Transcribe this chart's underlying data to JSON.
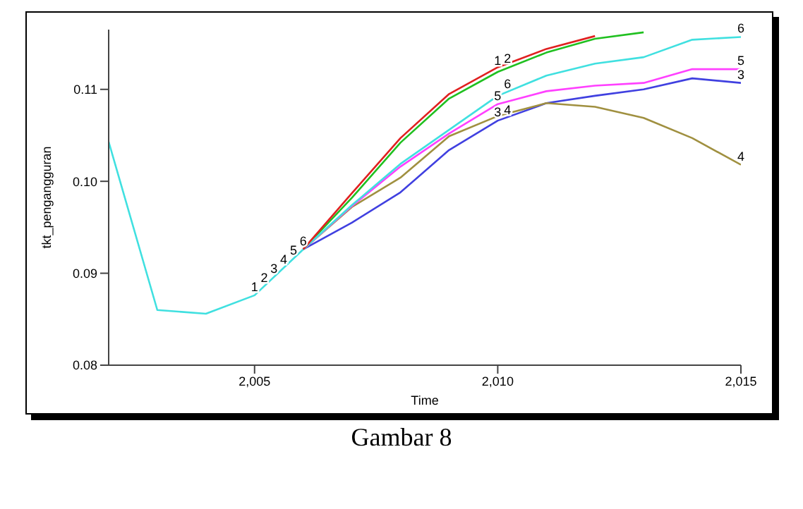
{
  "chart_data": {
    "type": "line",
    "xlabel": "Time",
    "ylabel": "tkt_pengangguran",
    "xlim": [
      2002,
      2015
    ],
    "xticks": [
      {
        "value": 2005,
        "label": "2,005"
      },
      {
        "value": 2010,
        "label": "2,010"
      },
      {
        "value": 2015,
        "label": "2,015"
      }
    ],
    "ylim": [
      0.08,
      0.1165
    ],
    "yticks": [
      {
        "value": 0.08,
        "label": "0.08"
      },
      {
        "value": 0.09,
        "label": "0.09"
      },
      {
        "value": 0.1,
        "label": "0.10"
      },
      {
        "value": 0.11,
        "label": "0.11"
      }
    ],
    "grid": false,
    "legend": false,
    "marker": "none",
    "line_style": "solid",
    "series": [
      {
        "color": "#20c020",
        "x": [
          2006,
          2007,
          2008,
          2009,
          2010,
          2011,
          2012,
          2013
        ],
        "values": [
          0.0926,
          0.0982,
          0.1042,
          0.109,
          0.1119,
          0.114,
          0.1155,
          0.1162
        ]
      },
      {
        "color": "#4040e0",
        "x": [
          2006,
          2007,
          2008,
          2009,
          2010,
          2011,
          2012,
          2013,
          2014,
          2015
        ],
        "values": [
          0.0926,
          0.0955,
          0.0988,
          0.1034,
          0.1066,
          0.1085,
          0.1093,
          0.11,
          0.1112,
          0.1107
        ]
      },
      {
        "color": "#a09040",
        "x": [
          2006,
          2007,
          2008,
          2009,
          2010,
          2011,
          2012,
          2013,
          2014,
          2015
        ],
        "values": [
          0.0926,
          0.0972,
          0.1004,
          0.1049,
          0.1071,
          0.1085,
          0.1081,
          0.1069,
          0.1047,
          0.1018
        ]
      },
      {
        "color": "#ff40ff",
        "x": [
          2006,
          2007,
          2008,
          2009,
          2010,
          2011,
          2012,
          2013,
          2014,
          2015
        ],
        "values": [
          0.0926,
          0.0973,
          0.1016,
          0.1052,
          0.1084,
          0.1098,
          0.1104,
          0.1107,
          0.1122,
          0.1122
        ]
      },
      {
        "color": "#40e0e0",
        "x": [
          2002,
          2003,
          2004,
          2005,
          2006,
          2007,
          2008,
          2009,
          2010,
          2011,
          2012,
          2013,
          2014,
          2015
        ],
        "values": [
          0.1043,
          0.086,
          0.0856,
          0.0876,
          0.0926,
          0.0974,
          0.1019,
          0.1056,
          0.1093,
          0.1115,
          0.1128,
          0.1135,
          0.1154,
          0.1157
        ]
      },
      {
        "color": "#e02020",
        "x": [
          2006,
          2007,
          2008,
          2009,
          2010,
          2011,
          2012
        ],
        "values": [
          0.0926,
          0.0987,
          0.1047,
          0.1095,
          0.1124,
          0.1144,
          0.1158
        ]
      }
    ],
    "annotations": [
      {
        "text": "1",
        "x": 2005,
        "y": 0.0876
      },
      {
        "text": "2",
        "x": 2005.2,
        "y": 0.0886
      },
      {
        "text": "3",
        "x": 2005.4,
        "y": 0.0896
      },
      {
        "text": "4",
        "x": 2005.6,
        "y": 0.0906
      },
      {
        "text": "5",
        "x": 2005.8,
        "y": 0.0916
      },
      {
        "text": "6",
        "x": 2006,
        "y": 0.0926
      },
      {
        "text": "1",
        "x": 2010,
        "y": 0.1122
      },
      {
        "text": "2",
        "x": 2010.2,
        "y": 0.1124
      },
      {
        "text": "6",
        "x": 2010.2,
        "y": 0.1097
      },
      {
        "text": "5",
        "x": 2010,
        "y": 0.1084
      },
      {
        "text": "3",
        "x": 2010,
        "y": 0.1066
      },
      {
        "text": "4",
        "x": 2010.2,
        "y": 0.1068
      },
      {
        "text": "6",
        "x": 2015,
        "y": 0.1157
      },
      {
        "text": "5",
        "x": 2015,
        "y": 0.1122
      },
      {
        "text": "3",
        "x": 2015,
        "y": 0.1107
      },
      {
        "text": "4",
        "x": 2015,
        "y": 0.1018
      },
      "Gambar 8"
    ]
  }
}
